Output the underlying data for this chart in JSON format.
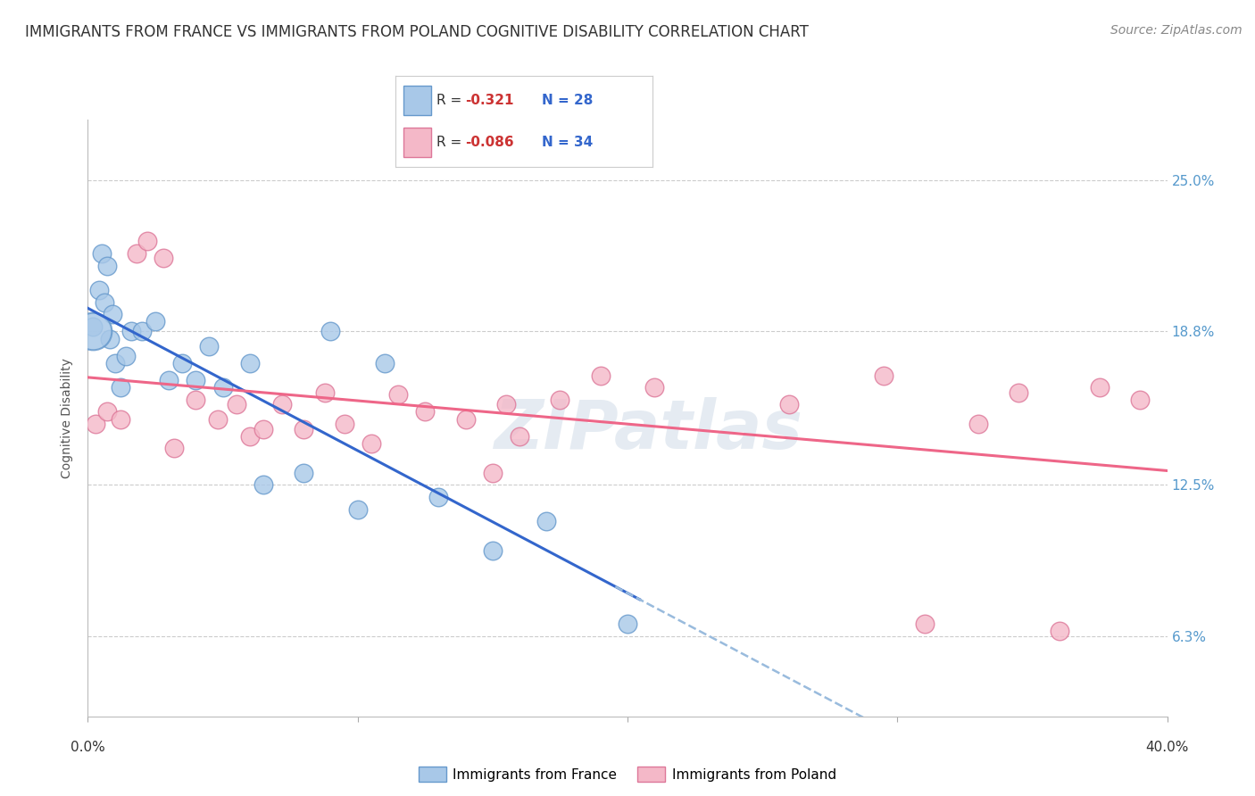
{
  "title": "IMMIGRANTS FROM FRANCE VS IMMIGRANTS FROM POLAND COGNITIVE DISABILITY CORRELATION CHART",
  "source": "Source: ZipAtlas.com",
  "ylabel": "Cognitive Disability",
  "ytick_labels": [
    "6.3%",
    "12.5%",
    "18.8%",
    "25.0%"
  ],
  "ytick_values": [
    0.063,
    0.125,
    0.188,
    0.25
  ],
  "xtick_labels": [
    "0.0%",
    "40.0%"
  ],
  "xtick_values": [
    0.0,
    0.4
  ],
  "xlim": [
    0.0,
    0.4
  ],
  "ylim": [
    0.03,
    0.275
  ],
  "france_color": "#a8c8e8",
  "france_edge_color": "#6699cc",
  "poland_color": "#f4b8c8",
  "poland_edge_color": "#dd7799",
  "france_line_color": "#3366cc",
  "poland_line_color": "#ee6688",
  "france_dashed_color": "#99bbdd",
  "watermark": "ZIPatlas",
  "background_color": "#ffffff",
  "grid_color": "#cccccc",
  "ytick_color": "#5599cc",
  "france_scatter_x": [
    0.002,
    0.004,
    0.005,
    0.006,
    0.007,
    0.008,
    0.009,
    0.01,
    0.012,
    0.014,
    0.016,
    0.02,
    0.025,
    0.03,
    0.035,
    0.04,
    0.045,
    0.05,
    0.06,
    0.065,
    0.08,
    0.09,
    0.1,
    0.11,
    0.13,
    0.15,
    0.17,
    0.2
  ],
  "france_scatter_y": [
    0.19,
    0.205,
    0.22,
    0.2,
    0.215,
    0.185,
    0.195,
    0.175,
    0.165,
    0.178,
    0.188,
    0.188,
    0.192,
    0.168,
    0.175,
    0.168,
    0.182,
    0.165,
    0.175,
    0.125,
    0.13,
    0.188,
    0.115,
    0.175,
    0.12,
    0.098,
    0.11,
    0.068
  ],
  "poland_scatter_x": [
    0.003,
    0.007,
    0.012,
    0.018,
    0.022,
    0.028,
    0.032,
    0.04,
    0.048,
    0.055,
    0.06,
    0.065,
    0.072,
    0.08,
    0.088,
    0.095,
    0.105,
    0.115,
    0.125,
    0.14,
    0.15,
    0.155,
    0.16,
    0.175,
    0.19,
    0.21,
    0.26,
    0.295,
    0.31,
    0.33,
    0.345,
    0.36,
    0.375,
    0.39
  ],
  "poland_scatter_y": [
    0.15,
    0.155,
    0.152,
    0.22,
    0.225,
    0.218,
    0.14,
    0.16,
    0.152,
    0.158,
    0.145,
    0.148,
    0.158,
    0.148,
    0.163,
    0.15,
    0.142,
    0.162,
    0.155,
    0.152,
    0.13,
    0.158,
    0.145,
    0.16,
    0.17,
    0.165,
    0.158,
    0.17,
    0.068,
    0.15,
    0.163,
    0.065,
    0.165,
    0.16
  ],
  "legend_france_text": [
    "R = ",
    "-0.321",
    "  N = 28"
  ],
  "legend_poland_text": [
    "R = ",
    "-0.086",
    "  N = 34"
  ],
  "legend_r_color": "#cc3333",
  "legend_n_color": "#3366cc",
  "title_fontsize": 12,
  "source_fontsize": 10,
  "tick_fontsize": 11,
  "ylabel_fontsize": 10,
  "legend_fontsize": 11
}
